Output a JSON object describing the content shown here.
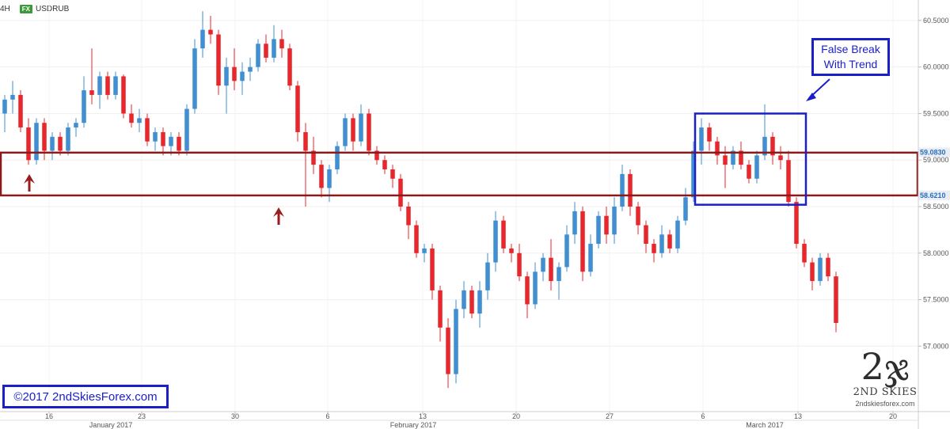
{
  "header": {
    "timeframe": "4H",
    "fx_badge": "FX",
    "symbol": "USDRUB"
  },
  "chart_data": {
    "type": "candlestick",
    "ylim": [
      56.5,
      60.6
    ],
    "y_ticks": [
      "60.5000",
      "60.0000",
      "59.5000",
      "59.0000",
      "58.5000",
      "58.0000",
      "57.5000",
      "57.0000"
    ],
    "x_ticks": [
      "16",
      "23",
      "30",
      "6",
      "13",
      "20",
      "27",
      "6",
      "13",
      "20"
    ],
    "months": [
      "January 2017",
      "February 2017",
      "March 2017"
    ],
    "price_labels": [
      {
        "text": "59.0830",
        "value": 59.083
      },
      {
        "text": "58.6210",
        "value": 58.621
      }
    ],
    "zone": {
      "top": 59.08,
      "bottom": 58.62
    },
    "candles": [
      {
        "o": 59.5,
        "h": 59.7,
        "l": 59.3,
        "c": 59.65
      },
      {
        "o": 59.65,
        "h": 59.85,
        "l": 59.5,
        "c": 59.7
      },
      {
        "o": 59.7,
        "h": 59.75,
        "l": 59.3,
        "c": 59.35
      },
      {
        "o": 59.35,
        "h": 59.45,
        "l": 58.95,
        "c": 59.0
      },
      {
        "o": 59.0,
        "h": 59.45,
        "l": 58.95,
        "c": 59.4
      },
      {
        "o": 59.4,
        "h": 59.45,
        "l": 59.0,
        "c": 59.1
      },
      {
        "o": 59.1,
        "h": 59.3,
        "l": 59.0,
        "c": 59.25
      },
      {
        "o": 59.25,
        "h": 59.3,
        "l": 59.05,
        "c": 59.1
      },
      {
        "o": 59.1,
        "h": 59.4,
        "l": 59.05,
        "c": 59.35
      },
      {
        "o": 59.35,
        "h": 59.45,
        "l": 59.25,
        "c": 59.4
      },
      {
        "o": 59.4,
        "h": 59.9,
        "l": 59.35,
        "c": 59.75
      },
      {
        "o": 59.75,
        "h": 60.2,
        "l": 59.6,
        "c": 59.7
      },
      {
        "o": 59.7,
        "h": 59.95,
        "l": 59.55,
        "c": 59.9
      },
      {
        "o": 59.9,
        "h": 59.95,
        "l": 59.65,
        "c": 59.7
      },
      {
        "o": 59.7,
        "h": 59.95,
        "l": 59.65,
        "c": 59.9
      },
      {
        "o": 59.9,
        "h": 59.92,
        "l": 59.45,
        "c": 59.5
      },
      {
        "o": 59.5,
        "h": 59.6,
        "l": 59.35,
        "c": 59.4
      },
      {
        "o": 59.4,
        "h": 59.55,
        "l": 59.3,
        "c": 59.45
      },
      {
        "o": 59.45,
        "h": 59.5,
        "l": 59.15,
        "c": 59.2
      },
      {
        "o": 59.2,
        "h": 59.35,
        "l": 59.1,
        "c": 59.3
      },
      {
        "o": 59.3,
        "h": 59.35,
        "l": 59.05,
        "c": 59.15
      },
      {
        "o": 59.15,
        "h": 59.3,
        "l": 59.05,
        "c": 59.25
      },
      {
        "o": 59.25,
        "h": 59.3,
        "l": 59.05,
        "c": 59.1
      },
      {
        "o": 59.1,
        "h": 59.6,
        "l": 59.05,
        "c": 59.55
      },
      {
        "o": 59.55,
        "h": 60.3,
        "l": 59.5,
        "c": 60.2
      },
      {
        "o": 60.2,
        "h": 60.6,
        "l": 60.1,
        "c": 60.4
      },
      {
        "o": 60.4,
        "h": 60.55,
        "l": 60.25,
        "c": 60.35
      },
      {
        "o": 60.35,
        "h": 60.4,
        "l": 59.7,
        "c": 59.8
      },
      {
        "o": 59.8,
        "h": 60.1,
        "l": 59.5,
        "c": 60.0
      },
      {
        "o": 60.0,
        "h": 60.2,
        "l": 59.75,
        "c": 59.85
      },
      {
        "o": 59.85,
        "h": 60.05,
        "l": 59.7,
        "c": 59.95
      },
      {
        "o": 59.95,
        "h": 60.1,
        "l": 59.85,
        "c": 60.0
      },
      {
        "o": 60.0,
        "h": 60.3,
        "l": 59.95,
        "c": 60.25
      },
      {
        "o": 60.25,
        "h": 60.35,
        "l": 60.05,
        "c": 60.1
      },
      {
        "o": 60.1,
        "h": 60.45,
        "l": 60.05,
        "c": 60.3
      },
      {
        "o": 60.3,
        "h": 60.4,
        "l": 60.1,
        "c": 60.2
      },
      {
        "o": 60.2,
        "h": 60.25,
        "l": 59.75,
        "c": 59.8
      },
      {
        "o": 59.8,
        "h": 59.85,
        "l": 59.2,
        "c": 59.3
      },
      {
        "o": 59.3,
        "h": 59.4,
        "l": 58.5,
        "c": 59.1
      },
      {
        "o": 59.1,
        "h": 59.25,
        "l": 58.85,
        "c": 58.95
      },
      {
        "o": 58.95,
        "h": 59.0,
        "l": 58.6,
        "c": 58.7
      },
      {
        "o": 58.7,
        "h": 58.95,
        "l": 58.55,
        "c": 58.9
      },
      {
        "o": 58.9,
        "h": 59.2,
        "l": 58.85,
        "c": 59.15
      },
      {
        "o": 59.15,
        "h": 59.5,
        "l": 59.1,
        "c": 59.45
      },
      {
        "o": 59.45,
        "h": 59.5,
        "l": 59.1,
        "c": 59.2
      },
      {
        "o": 59.2,
        "h": 59.6,
        "l": 59.15,
        "c": 59.5
      },
      {
        "o": 59.5,
        "h": 59.55,
        "l": 59.05,
        "c": 59.1
      },
      {
        "o": 59.1,
        "h": 59.15,
        "l": 58.95,
        "c": 59.0
      },
      {
        "o": 59.0,
        "h": 59.05,
        "l": 58.85,
        "c": 58.9
      },
      {
        "o": 58.9,
        "h": 58.95,
        "l": 58.7,
        "c": 58.8
      },
      {
        "o": 58.8,
        "h": 58.85,
        "l": 58.45,
        "c": 58.5
      },
      {
        "o": 58.5,
        "h": 58.55,
        "l": 58.15,
        "c": 58.3
      },
      {
        "o": 58.3,
        "h": 58.35,
        "l": 57.95,
        "c": 58.0
      },
      {
        "o": 58.0,
        "h": 58.1,
        "l": 57.9,
        "c": 58.05
      },
      {
        "o": 58.05,
        "h": 58.1,
        "l": 57.5,
        "c": 57.6
      },
      {
        "o": 57.6,
        "h": 57.65,
        "l": 57.05,
        "c": 57.2
      },
      {
        "o": 57.2,
        "h": 57.3,
        "l": 56.55,
        "c": 56.7
      },
      {
        "o": 56.7,
        "h": 57.5,
        "l": 56.6,
        "c": 57.4
      },
      {
        "o": 57.4,
        "h": 57.7,
        "l": 57.3,
        "c": 57.6
      },
      {
        "o": 57.6,
        "h": 57.65,
        "l": 57.3,
        "c": 57.35
      },
      {
        "o": 57.35,
        "h": 57.7,
        "l": 57.2,
        "c": 57.6
      },
      {
        "o": 57.6,
        "h": 58.0,
        "l": 57.5,
        "c": 57.9
      },
      {
        "o": 57.9,
        "h": 58.45,
        "l": 57.8,
        "c": 58.35
      },
      {
        "o": 58.35,
        "h": 58.4,
        "l": 58.0,
        "c": 58.05
      },
      {
        "o": 58.05,
        "h": 58.1,
        "l": 57.9,
        "c": 58.0
      },
      {
        "o": 58.0,
        "h": 58.1,
        "l": 57.7,
        "c": 57.75
      },
      {
        "o": 57.75,
        "h": 57.8,
        "l": 57.3,
        "c": 57.45
      },
      {
        "o": 57.45,
        "h": 57.9,
        "l": 57.4,
        "c": 57.8
      },
      {
        "o": 57.8,
        "h": 58.0,
        "l": 57.7,
        "c": 57.95
      },
      {
        "o": 57.95,
        "h": 58.15,
        "l": 57.6,
        "c": 57.7
      },
      {
        "o": 57.7,
        "h": 57.9,
        "l": 57.5,
        "c": 57.85
      },
      {
        "o": 57.85,
        "h": 58.3,
        "l": 57.8,
        "c": 58.2
      },
      {
        "o": 58.2,
        "h": 58.55,
        "l": 58.1,
        "c": 58.45
      },
      {
        "o": 58.45,
        "h": 58.5,
        "l": 57.7,
        "c": 57.8
      },
      {
        "o": 57.8,
        "h": 58.2,
        "l": 57.75,
        "c": 58.1
      },
      {
        "o": 58.1,
        "h": 58.45,
        "l": 58.05,
        "c": 58.4
      },
      {
        "o": 58.4,
        "h": 58.5,
        "l": 58.1,
        "c": 58.2
      },
      {
        "o": 58.2,
        "h": 58.6,
        "l": 58.1,
        "c": 58.5
      },
      {
        "o": 58.5,
        "h": 58.95,
        "l": 58.45,
        "c": 58.85
      },
      {
        "o": 58.85,
        "h": 58.9,
        "l": 58.4,
        "c": 58.5
      },
      {
        "o": 58.5,
        "h": 58.55,
        "l": 58.2,
        "c": 58.3
      },
      {
        "o": 58.3,
        "h": 58.35,
        "l": 58.0,
        "c": 58.1
      },
      {
        "o": 58.1,
        "h": 58.15,
        "l": 57.9,
        "c": 58.0
      },
      {
        "o": 58.0,
        "h": 58.3,
        "l": 57.95,
        "c": 58.2
      },
      {
        "o": 58.2,
        "h": 58.25,
        "l": 58.0,
        "c": 58.05
      },
      {
        "o": 58.05,
        "h": 58.4,
        "l": 58.0,
        "c": 58.35
      },
      {
        "o": 58.35,
        "h": 58.7,
        "l": 58.3,
        "c": 58.6
      },
      {
        "o": 58.6,
        "h": 59.2,
        "l": 58.55,
        "c": 59.1
      },
      {
        "o": 59.1,
        "h": 59.45,
        "l": 58.95,
        "c": 59.35
      },
      {
        "o": 59.35,
        "h": 59.4,
        "l": 59.1,
        "c": 59.2
      },
      {
        "o": 59.2,
        "h": 59.25,
        "l": 58.95,
        "c": 59.05
      },
      {
        "o": 59.05,
        "h": 59.15,
        "l": 58.7,
        "c": 58.95
      },
      {
        "o": 58.95,
        "h": 59.15,
        "l": 58.9,
        "c": 59.1
      },
      {
        "o": 59.1,
        "h": 59.2,
        "l": 58.9,
        "c": 58.95
      },
      {
        "o": 58.95,
        "h": 59.0,
        "l": 58.75,
        "c": 58.8
      },
      {
        "o": 58.8,
        "h": 59.1,
        "l": 58.75,
        "c": 59.05
      },
      {
        "o": 59.05,
        "h": 59.6,
        "l": 59.0,
        "c": 59.25
      },
      {
        "o": 59.25,
        "h": 59.3,
        "l": 58.95,
        "c": 59.05
      },
      {
        "o": 59.05,
        "h": 59.15,
        "l": 58.9,
        "c": 59.0
      },
      {
        "o": 59.0,
        "h": 59.1,
        "l": 58.5,
        "c": 58.55
      },
      {
        "o": 58.55,
        "h": 58.6,
        "l": 58.05,
        "c": 58.1
      },
      {
        "o": 58.1,
        "h": 58.15,
        "l": 57.85,
        "c": 57.9
      },
      {
        "o": 57.9,
        "h": 57.95,
        "l": 57.6,
        "c": 57.7
      },
      {
        "o": 57.7,
        "h": 58.0,
        "l": 57.65,
        "c": 57.95
      },
      {
        "o": 57.95,
        "h": 58.0,
        "l": 57.7,
        "c": 57.75
      },
      {
        "o": 57.75,
        "h": 57.8,
        "l": 57.15,
        "c": 57.25
      }
    ]
  },
  "annotation": {
    "line1": "False Break",
    "line2": "With Trend"
  },
  "copyright": "©2017 2ndSkiesForex.com",
  "logo": {
    "brand": "2ND SKIES",
    "site": "2ndskiesforex.com"
  },
  "colors": {
    "up": "#3f8fd2",
    "down": "#e8262b",
    "zone": "#8b1a1a",
    "annot": "#1a1fc8"
  }
}
